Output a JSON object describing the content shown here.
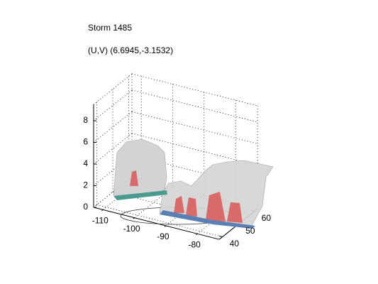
{
  "chart_data": {
    "type": "isosurface3d",
    "title": "Storm 1485",
    "subtitle": "(U,V) (6.6945,-3.1532)",
    "xlim": [
      -113,
      -73
    ],
    "xticks": [
      -110,
      -100,
      -90,
      -80
    ],
    "ylim": [
      38,
      62
    ],
    "yticks": [
      40,
      50,
      60
    ],
    "zlim": [
      0,
      9.5
    ],
    "zticks": [
      0,
      2,
      4,
      6,
      8
    ],
    "grid": true
  }
}
